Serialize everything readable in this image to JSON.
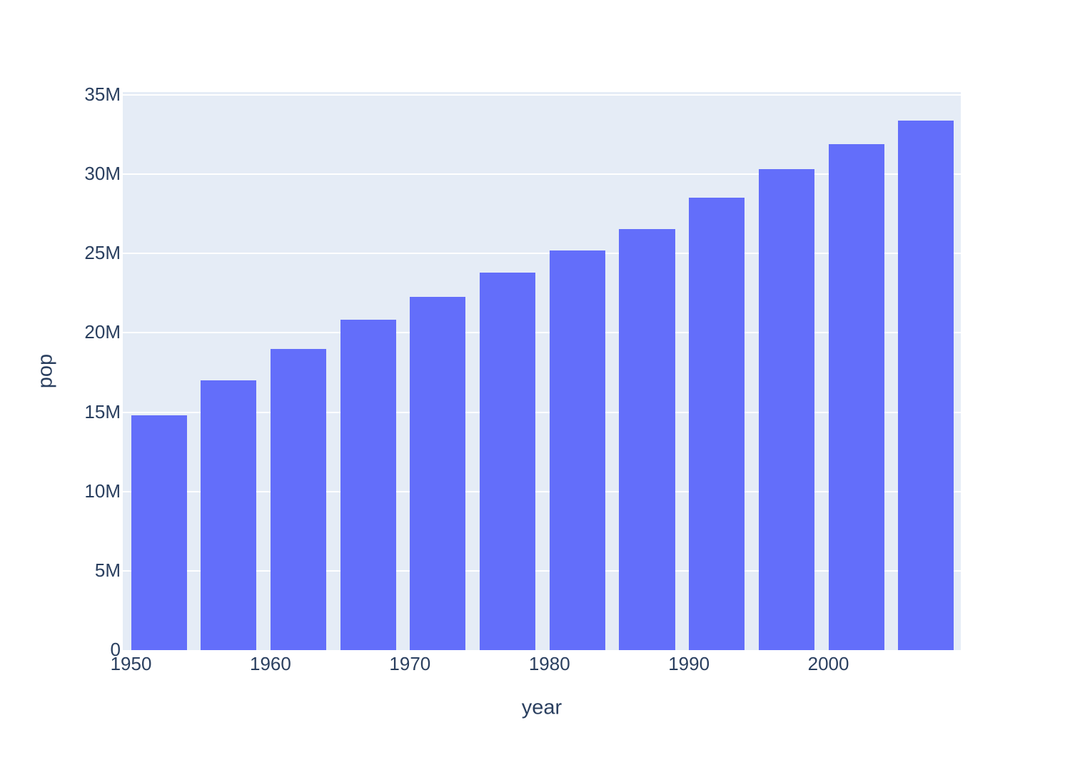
{
  "chart_data": {
    "type": "bar",
    "title": "",
    "xlabel": "year",
    "ylabel": "pop",
    "x": [
      1952,
      1957,
      1962,
      1967,
      1972,
      1977,
      1982,
      1987,
      1992,
      1997,
      2002,
      2007
    ],
    "values": [
      14785584,
      17010154,
      18985849,
      20819767,
      22284500,
      23796400,
      25201900,
      26549700,
      28523502,
      30305843,
      31902268,
      33390141
    ],
    "x_ticks": [
      {
        "value": 1950,
        "label": "1950"
      },
      {
        "value": 1960,
        "label": "1960"
      },
      {
        "value": 1970,
        "label": "1970"
      },
      {
        "value": 1980,
        "label": "1980"
      },
      {
        "value": 1990,
        "label": "1990"
      },
      {
        "value": 2000,
        "label": "2000"
      }
    ],
    "y_ticks": [
      {
        "value": 0,
        "label": "0"
      },
      {
        "value": 5000000,
        "label": "5M"
      },
      {
        "value": 10000000,
        "label": "10M"
      },
      {
        "value": 15000000,
        "label": "15M"
      },
      {
        "value": 20000000,
        "label": "20M"
      },
      {
        "value": 25000000,
        "label": "25M"
      },
      {
        "value": 30000000,
        "label": "30M"
      },
      {
        "value": 35000000,
        "label": "35M"
      }
    ],
    "xlim": [
      1949.41,
      2009.49
    ],
    "ylim": [
      0,
      35180000
    ],
    "bar_width_x_units": 4,
    "grid": true,
    "legend": "none",
    "colors": {
      "bar": "#636efa",
      "plot_background": "#e5ecf6",
      "gridline": "#ffffff",
      "text": "#2a3f5f",
      "page_background": "#ffffff"
    }
  }
}
